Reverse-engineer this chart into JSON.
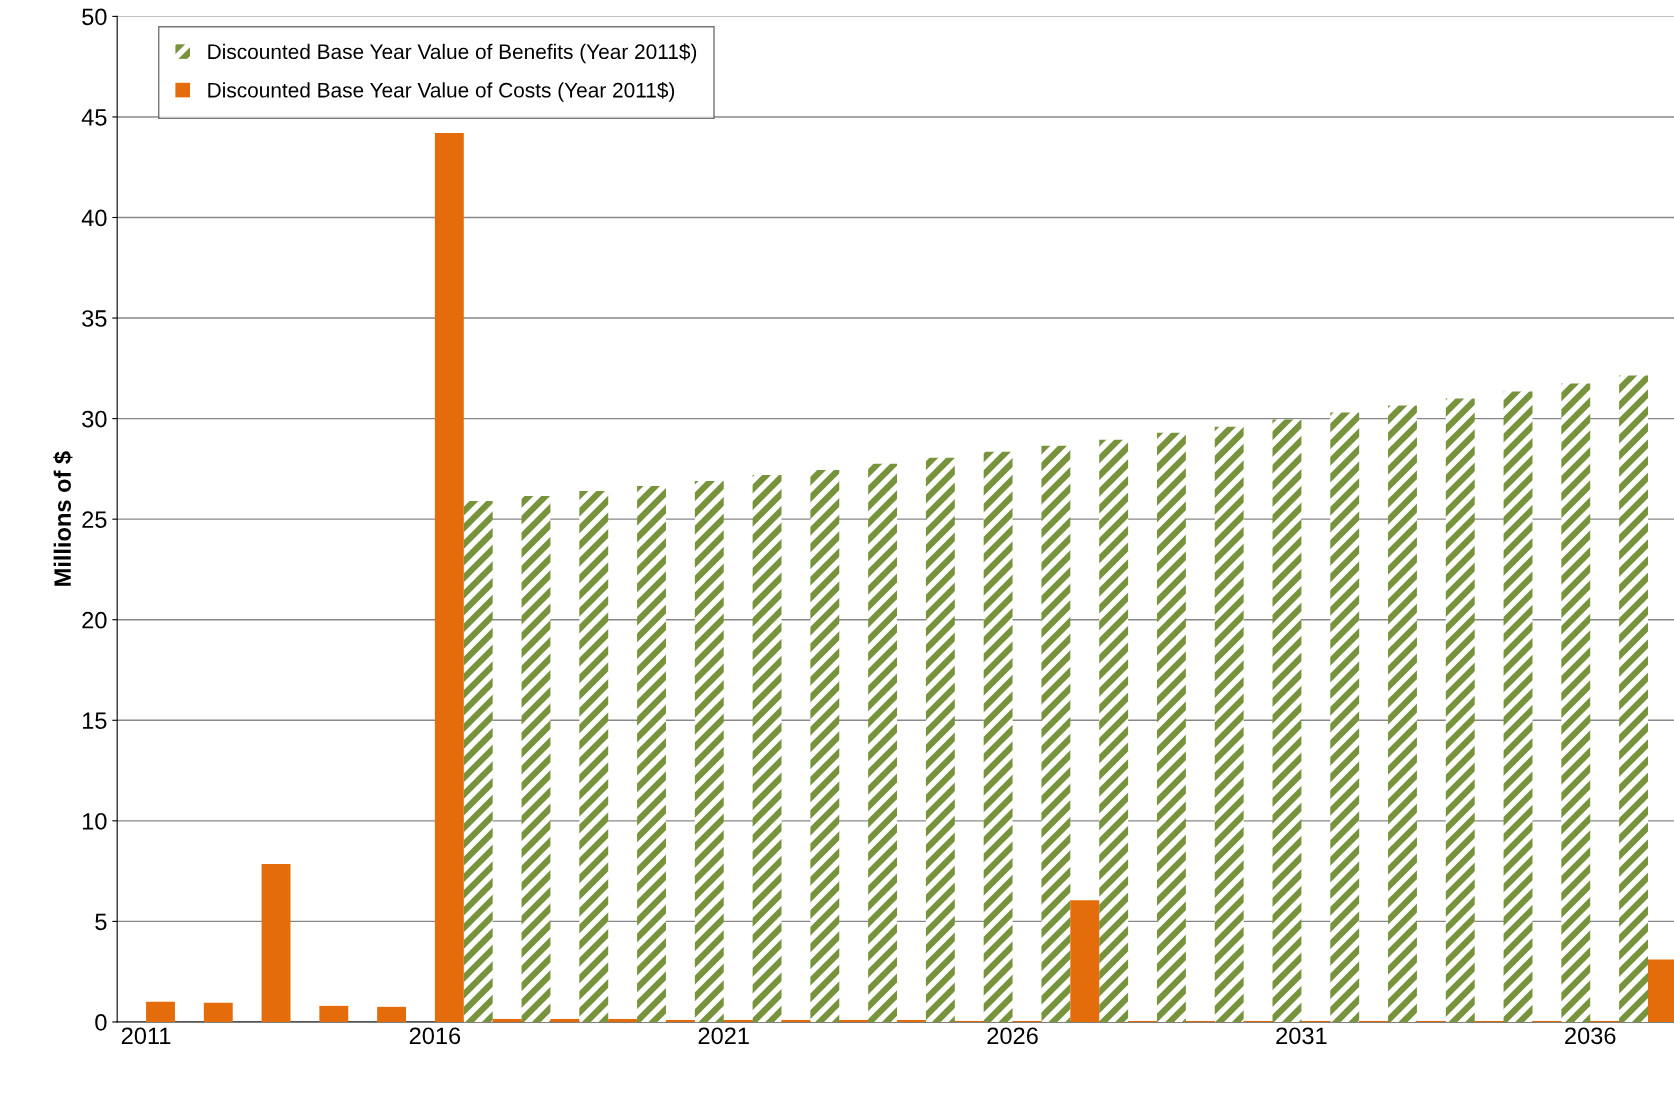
{
  "chart_data": {
    "type": "bar",
    "ylabel": "Millions of $",
    "categories": [
      "2011",
      null,
      null,
      null,
      null,
      "2016",
      null,
      null,
      null,
      null,
      "2021",
      null,
      null,
      null,
      null,
      "2026",
      null,
      null,
      null,
      null,
      "2031",
      null,
      null,
      null,
      null,
      "2036",
      null
    ],
    "series": [
      {
        "name": "Discounted Base Year Value of Benefits (Year 2011$)",
        "color": "#77933c",
        "values": [
          0,
          0,
          0,
          0,
          0,
          0,
          25.9,
          26.15,
          26.4,
          26.65,
          26.9,
          27.2,
          27.45,
          27.75,
          28.05,
          28.35,
          28.65,
          28.95,
          29.3,
          29.6,
          29.95,
          30.3,
          30.65,
          31.0,
          31.35,
          31.75,
          32.15
        ]
      },
      {
        "name": "Discounted Base Year Value of Costs (Year 2011$)",
        "color": "#e46c0a",
        "values": [
          1.0,
          0.95,
          7.85,
          0.8,
          0.75,
          44.2,
          0.15,
          0.15,
          0.15,
          0.1,
          0.1,
          0.1,
          0.1,
          0.1,
          0.05,
          0.05,
          6.05,
          0.05,
          0.05,
          0.05,
          0.05,
          0.05,
          0.05,
          0.05,
          0.05,
          0.05,
          3.1
        ]
      }
    ],
    "ylim": [
      0,
      50
    ],
    "yticks": [
      0,
      5,
      10,
      15,
      20,
      25,
      30,
      35,
      40,
      45,
      50
    ],
    "grid": "y",
    "legend": "top left"
  }
}
